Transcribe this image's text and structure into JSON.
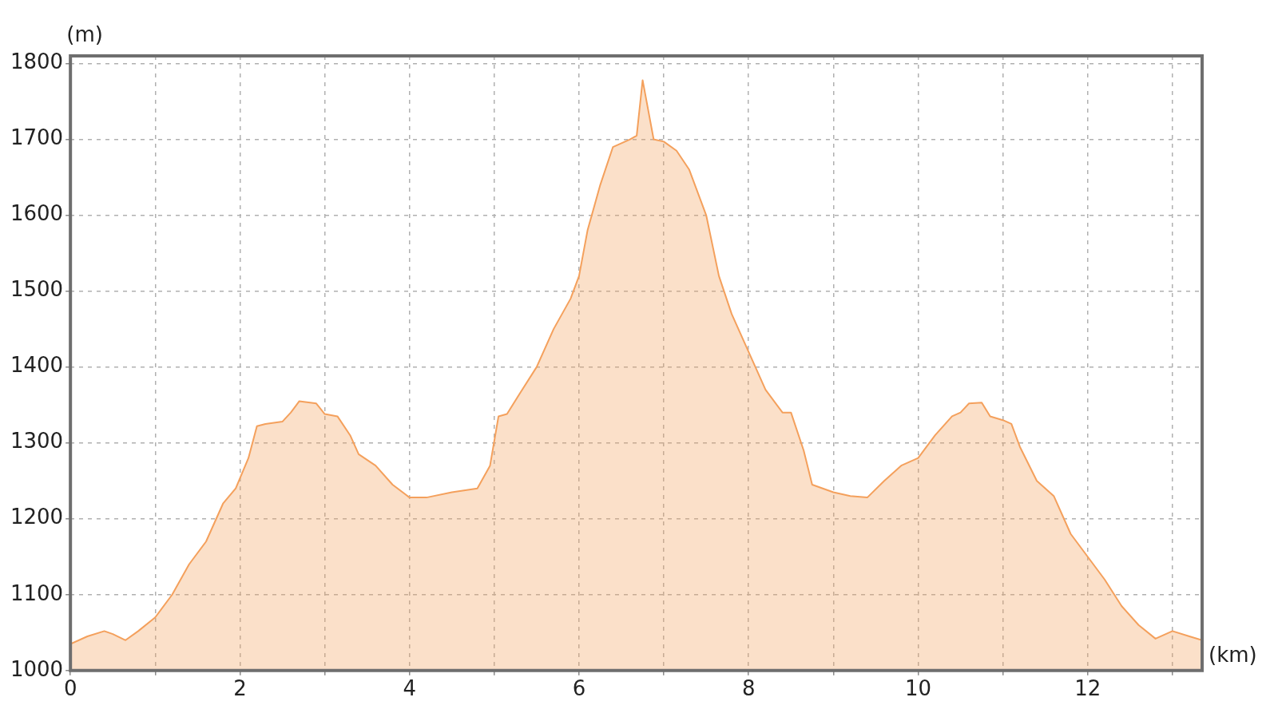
{
  "chart_data": {
    "type": "area",
    "xlabel": "(km)",
    "ylabel": "(m)",
    "color": "#f4a05c",
    "x": [
      0,
      0.2,
      0.4,
      0.5,
      0.65,
      0.8,
      1.0,
      1.2,
      1.4,
      1.6,
      1.8,
      1.95,
      2.1,
      2.2,
      2.3,
      2.5,
      2.6,
      2.7,
      2.9,
      3.0,
      3.15,
      3.3,
      3.4,
      3.6,
      3.8,
      4.0,
      4.2,
      4.5,
      4.8,
      4.95,
      5.05,
      5.15,
      5.3,
      5.5,
      5.7,
      5.9,
      6.0,
      6.1,
      6.25,
      6.4,
      6.6,
      6.68,
      6.75,
      6.88,
      7.0,
      7.15,
      7.3,
      7.5,
      7.65,
      7.8,
      8.0,
      8.2,
      8.4,
      8.5,
      8.65,
      8.75,
      9.0,
      9.2,
      9.4,
      9.6,
      9.8,
      10.0,
      10.2,
      10.4,
      10.5,
      10.6,
      10.75,
      10.85,
      11.0,
      11.1,
      11.2,
      11.4,
      11.6,
      11.8,
      12.0,
      12.2,
      12.4,
      12.6,
      12.8,
      13.0,
      13.2,
      13.35
    ],
    "values": [
      1035,
      1045,
      1052,
      1048,
      1040,
      1052,
      1070,
      1100,
      1140,
      1170,
      1220,
      1240,
      1280,
      1322,
      1325,
      1328,
      1340,
      1355,
      1352,
      1338,
      1335,
      1310,
      1285,
      1270,
      1245,
      1228,
      1228,
      1235,
      1240,
      1270,
      1335,
      1338,
      1365,
      1400,
      1450,
      1490,
      1520,
      1580,
      1640,
      1690,
      1700,
      1705,
      1778,
      1700,
      1697,
      1685,
      1660,
      1600,
      1520,
      1470,
      1420,
      1370,
      1340,
      1340,
      1290,
      1245,
      1235,
      1230,
      1228,
      1250,
      1270,
      1280,
      1310,
      1335,
      1340,
      1352,
      1353,
      1335,
      1330,
      1325,
      1295,
      1250,
      1230,
      1180,
      1150,
      1120,
      1085,
      1060,
      1042,
      1052,
      1045,
      1040
    ],
    "xlim": [
      0,
      13.35
    ],
    "ylim": [
      1000,
      1810
    ],
    "xticks": [
      0,
      {
        "value": 1,
        "label": null
      },
      2,
      {
        "value": 3,
        "label": null
      },
      4,
      {
        "value": 5,
        "label": null
      },
      6,
      {
        "value": 7,
        "label": null
      },
      8,
      {
        "value": 9,
        "label": null
      },
      10,
      {
        "value": 11,
        "label": null
      },
      12,
      {
        "value": 13,
        "label": null
      }
    ],
    "yticks": [
      1000,
      1100,
      1200,
      1300,
      1400,
      1500,
      1600,
      1700,
      1800
    ],
    "grid": true
  }
}
